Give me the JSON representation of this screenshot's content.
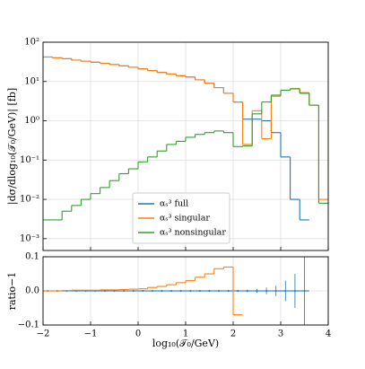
{
  "chart_data": [
    {
      "type": "histogram",
      "ylabel": "|dσ/dlog₁₀(𝒯₀/GeV)| [fb]",
      "bins": [
        -2,
        -1.8,
        -1.6,
        -1.4,
        -1.2,
        -1,
        -0.8,
        -0.6,
        -0.4,
        -0.2,
        0,
        0.2,
        0.4,
        0.6,
        0.8,
        1,
        1.2,
        1.4,
        1.6,
        1.8,
        2,
        2.2,
        2.4,
        2.6,
        2.8,
        3,
        3.2,
        3.4,
        3.6,
        3.8,
        4
      ],
      "series": [
        {
          "name": "αₛ³ full",
          "color": "#1f77b4",
          "values": [
            42,
            40,
            38,
            35,
            33,
            31,
            29,
            27,
            25,
            23,
            21,
            19,
            17,
            15.5,
            14,
            13,
            11,
            9,
            7,
            5,
            3,
            1.1,
            1.1,
            1.0,
            0.5,
            0.12,
            0.01,
            0.003,
            null,
            null
          ]
        },
        {
          "name": "αₛ³ singular",
          "color": "#ff7f0e",
          "values": [
            42,
            40,
            38,
            35,
            33,
            31,
            29,
            27,
            25,
            23,
            21,
            19,
            17,
            15.5,
            14,
            13,
            11,
            9,
            7,
            5,
            3,
            0.25,
            1.8,
            0.35,
            4.2,
            6,
            6.6,
            5.2,
            2.5,
            0.01
          ]
        },
        {
          "name": "αₛ³ nonsingular",
          "color": "#2ca02c",
          "values": [
            0.003,
            0.003,
            0.005,
            0.007,
            0.01,
            0.014,
            0.02,
            0.03,
            0.045,
            0.06,
            0.09,
            0.12,
            0.17,
            0.25,
            0.3,
            0.38,
            0.45,
            0.5,
            0.55,
            0.5,
            0.22,
            0.23,
            1.5,
            3,
            4.5,
            6,
            6.5,
            5,
            2.5,
            0.008
          ]
        }
      ],
      "xlim": [
        -2,
        4
      ],
      "ylim": [
        0.0005,
        100
      ],
      "log_y": true,
      "grid": true,
      "legend": "lower center",
      "yticks": [
        {
          "value": 0.001,
          "label": "10⁻³"
        },
        {
          "value": 0.01,
          "label": "10⁻²"
        },
        {
          "value": 0.1,
          "label": "10⁻¹"
        },
        {
          "value": 1,
          "label": "10⁰"
        },
        {
          "value": 10,
          "label": "10¹"
        },
        {
          "value": 100,
          "label": "10²"
        }
      ]
    },
    {
      "type": "histogram",
      "xlabel": "log₁₀(𝒯₀/GeV)",
      "ylabel": "ratio−1",
      "bins": [
        -2,
        -1.8,
        -1.6,
        -1.4,
        -1.2,
        -1,
        -0.8,
        -0.6,
        -0.4,
        -0.2,
        0,
        0.2,
        0.4,
        0.6,
        0.8,
        1,
        1.2,
        1.4,
        1.6,
        1.8,
        2,
        2.2,
        2.4,
        2.6,
        2.8,
        3,
        3.2,
        3.4,
        3.6,
        3.8,
        4
      ],
      "series": [
        {
          "color": "#1f77b4",
          "values": [
            0,
            0,
            0,
            0,
            0,
            0,
            0,
            0,
            0,
            0,
            0,
            0,
            0,
            0,
            0,
            0,
            0,
            0,
            0,
            0,
            0,
            0,
            0,
            0,
            0,
            0,
            0,
            0,
            null,
            null
          ],
          "errors": [
            0.001,
            0.001,
            0.001,
            0.001,
            0.001,
            0.001,
            0.001,
            0.001,
            0.001,
            0.001,
            0.001,
            0.001,
            0.001,
            0.001,
            0.001,
            0.001,
            0.001,
            0.001,
            0.001,
            0.001,
            0.002,
            0.004,
            0.006,
            0.01,
            0.015,
            0.03,
            0.05,
            0.1,
            null,
            null
          ]
        },
        {
          "color": "#ff7f0e",
          "values": [
            0,
            0,
            0.001,
            0.002,
            0.002,
            0.002,
            0.003,
            0.003,
            0.004,
            0.005,
            0.006,
            0.01,
            0.013,
            0.018,
            0.024,
            0.03,
            0.04,
            0.05,
            0.065,
            0.07,
            -0.07,
            null,
            null,
            null,
            null,
            null,
            null,
            null,
            null,
            null
          ]
        }
      ],
      "xlim": [
        -2,
        4
      ],
      "ylim": [
        -0.1,
        0.1
      ],
      "grid": true,
      "xticks": [
        {
          "value": -2,
          "label": "−2"
        },
        {
          "value": -1,
          "label": "−1"
        },
        0,
        1,
        2,
        3,
        4
      ],
      "yticks": [
        {
          "value": -0.1,
          "label": "−0.1"
        },
        {
          "value": 0,
          "label": "0.0"
        },
        {
          "value": 0.1,
          "label": "0.1"
        }
      ]
    }
  ]
}
